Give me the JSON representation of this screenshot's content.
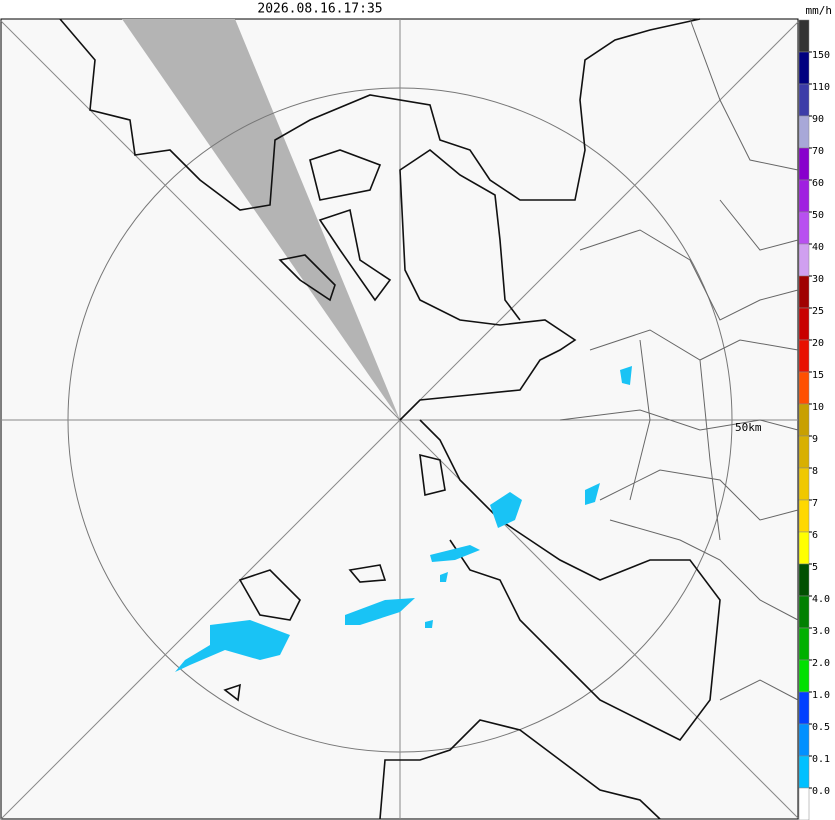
{
  "header": {
    "timestamp": "2026.08.16.17:35",
    "unit": "mm/h"
  },
  "map": {
    "range_label": "50km"
  },
  "legend": {
    "colors": [
      "#333333",
      "#000080",
      "#3c3ca8",
      "#a8a8d8",
      "#8800cc",
      "#a020e0",
      "#b850f0",
      "#d0a0f0",
      "#a00000",
      "#c80000",
      "#e81000",
      "#ff5000",
      "#c8a000",
      "#d8b000",
      "#f0c800",
      "#ffd800",
      "#ffff00",
      "#005000",
      "#008000",
      "#00b000",
      "#00e000",
      "#0040ff",
      "#0090ff",
      "#00c0ff",
      "#ffffff"
    ],
    "labels": [
      "150",
      "110",
      "90",
      "70",
      "60",
      "50",
      "40",
      "30",
      "25",
      "20",
      "15",
      "10",
      "9",
      "8",
      "7",
      "6",
      "5",
      "4.0",
      "3.0",
      "2.0",
      "1.0",
      "0.5",
      "0.1",
      "0.0"
    ]
  }
}
